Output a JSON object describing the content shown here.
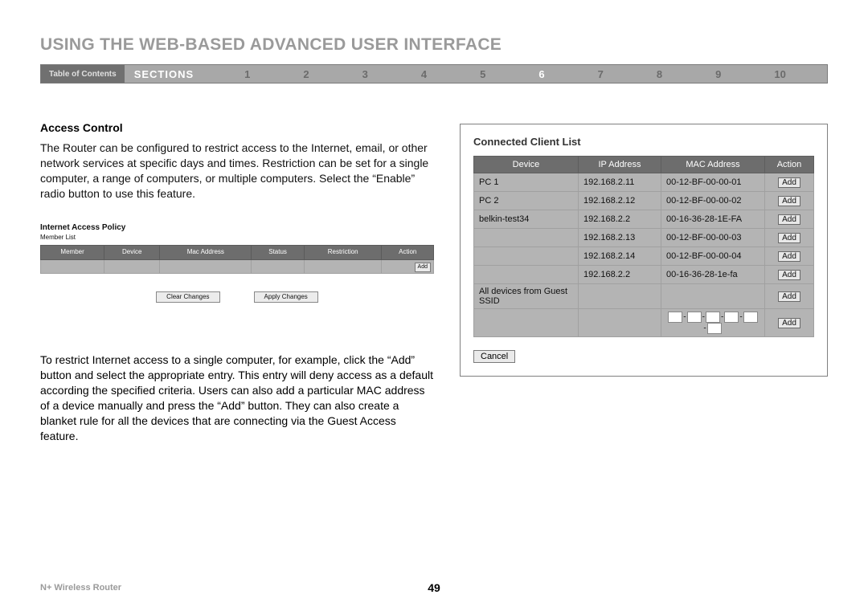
{
  "page_title": "USING THE WEB-BASED ADVANCED USER INTERFACE",
  "nav": {
    "toc_label": "Table of Contents",
    "sections_label": "SECTIONS",
    "numbers": [
      "1",
      "2",
      "3",
      "4",
      "5",
      "6",
      "7",
      "8",
      "9",
      "10"
    ],
    "active_index": 5
  },
  "left": {
    "heading": "Access Control",
    "para1": "The Router can be configured to restrict access to the Internet, email, or other network services at specific days and times. Restriction can be set for a single computer, a range of computers, or multiple computers. Select the “Enable” radio button to use this feature.",
    "iap": {
      "title": "Internet Access Policy",
      "subtitle": "Member List",
      "columns": [
        "Member",
        "Device",
        "Mac Address",
        "Status",
        "Restriction",
        "Action"
      ],
      "add_label": "Add",
      "clear_label": "Clear Changes",
      "apply_label": "Apply Changes"
    },
    "para2": "To restrict Internet access to a single computer, for example, click the “Add” button and select the appropriate entry. This entry will deny access as a default according the specified criteria. Users can also add a particular MAC address of a device manually and press the “Add” button. They can also create a blanket rule for all the devices that are connecting via the Guest Access feature."
  },
  "right": {
    "panel_title": "Connected Client List",
    "columns": [
      "Device",
      "IP Address",
      "MAC Address",
      "Action"
    ],
    "rows": [
      {
        "device": "PC 1",
        "ip": "192.168.2.11",
        "mac": "00-12-BF-00-00-01"
      },
      {
        "device": "PC 2",
        "ip": "192.168.2.12",
        "mac": "00-12-BF-00-00-02"
      },
      {
        "device": "belkin-test34",
        "ip": "192.168.2.2",
        "mac": "00-16-36-28-1E-FA"
      },
      {
        "device": "",
        "ip": "192.168.2.13",
        "mac": "00-12-BF-00-00-03"
      },
      {
        "device": "",
        "ip": "192.168.2.14",
        "mac": "00-12-BF-00-00-04"
      },
      {
        "device": "",
        "ip": "192.168.2.2",
        "mac": "00-16-36-28-1e-fa"
      },
      {
        "device": "All devices from Guest SSID",
        "ip": "",
        "mac": ""
      }
    ],
    "add_label": "Add",
    "cancel_label": "Cancel"
  },
  "footer": {
    "product": "N+ Wireless Router",
    "page_number": "49"
  },
  "colors": {
    "title_gray": "#9a9a9a",
    "bar_dark": "#707070",
    "bar_light": "#a8a8a8",
    "table_header": "#6d6d6d",
    "table_cell": "#b4b4b4"
  }
}
